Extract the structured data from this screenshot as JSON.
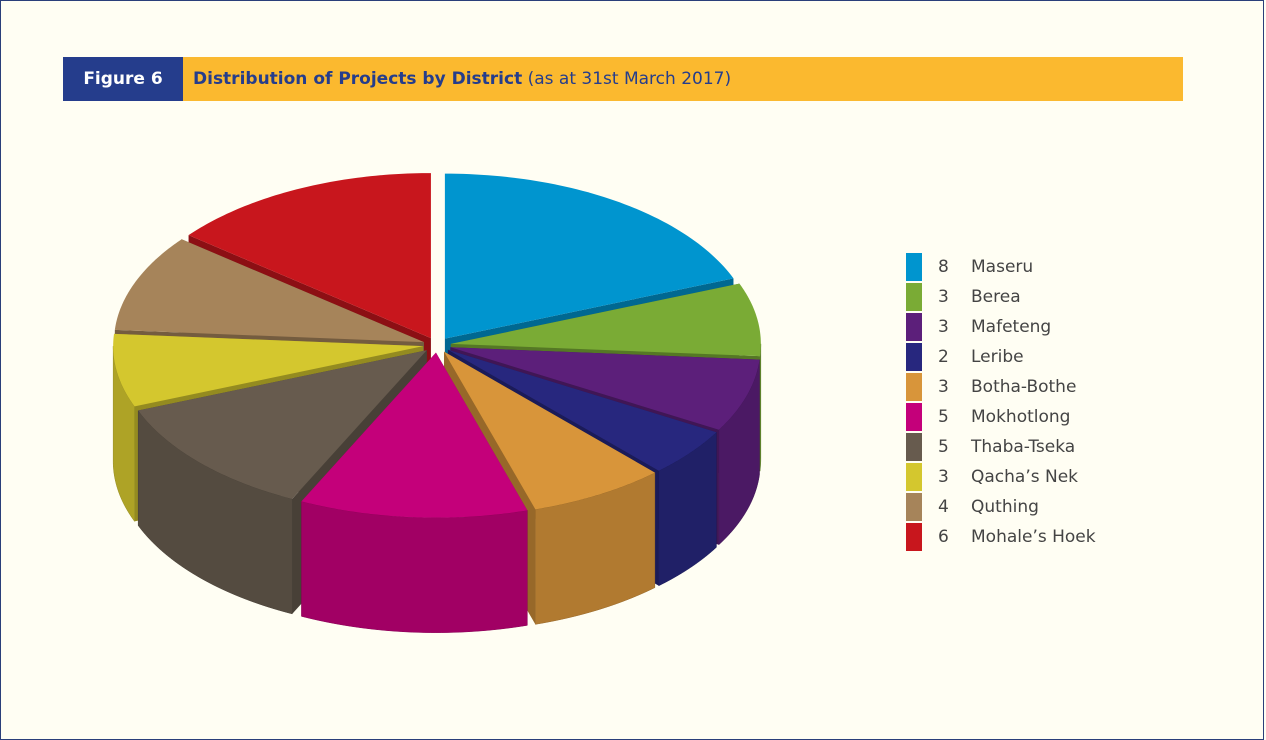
{
  "chart_data": {
    "type": "pie",
    "figure_label": "Figure 6",
    "title": "Distribution of Projects by District",
    "subtitle": "(as at 31st March 2017)",
    "categories": [
      "Maseru",
      "Berea",
      "Mafeteng",
      "Leribe",
      "Botha-Bothe",
      "Mokhotlong",
      "Thaba-Tseka",
      "Qacha’s Nek",
      "Quthing",
      "Mohale’s Hoek"
    ],
    "values": [
      8,
      3,
      3,
      2,
      3,
      5,
      5,
      3,
      4,
      6
    ],
    "colors": [
      "#0095cf",
      "#7aab35",
      "#5c1f7a",
      "#27277e",
      "#d8953a",
      "#c4007a",
      "#675b4e",
      "#d4c72e",
      "#a6845a",
      "#c8161d"
    ],
    "legend": "right"
  }
}
